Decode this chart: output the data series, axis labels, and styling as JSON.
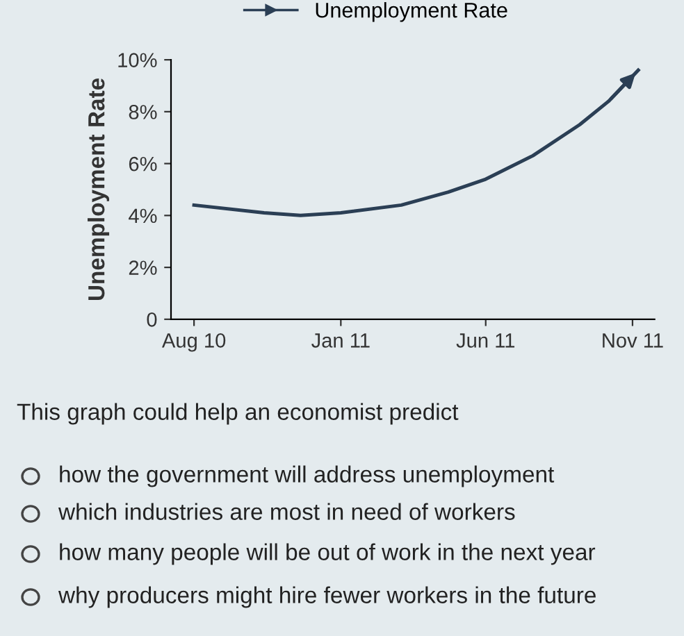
{
  "chart_data": {
    "type": "line",
    "ylabel": "Unemployment Rate",
    "x": [
      "2010-08-01",
      "2010-10-13",
      "2010-11-20",
      "2011-01-01",
      "2011-03-05",
      "2011-04-23",
      "2011-06-01",
      "2011-07-20",
      "2011-09-07",
      "2011-10-07",
      "2011-11-07"
    ],
    "series": [
      {
        "name": "Unemployment Rate",
        "color": "#2b3f55",
        "values": [
          4.4,
          4.1,
          4.0,
          4.1,
          4.4,
          4.9,
          5.4,
          6.3,
          7.5,
          8.4,
          9.6
        ]
      }
    ],
    "xlim": [
      "2010-07-08",
      "2011-11-24"
    ],
    "xticks": [
      {
        "value": "2010-08-01",
        "label": "Aug 10"
      },
      {
        "value": "2011-01-01",
        "label": "Jan 11"
      },
      {
        "value": "2011-06-01",
        "label": "Jun 11"
      },
      {
        "value": "2011-11-01",
        "label": "Nov 11"
      }
    ],
    "ylim": [
      0,
      10
    ],
    "yticks": [
      0,
      {
        "value": 2,
        "label": "2%"
      },
      {
        "value": 4,
        "label": "4%"
      },
      {
        "value": 6,
        "label": "6%"
      },
      {
        "value": 8,
        "label": "8%"
      },
      {
        "value": 10,
        "label": "10%"
      }
    ],
    "grid": false,
    "legend": "top",
    "marker": "none",
    "line_style": "solid",
    "annotations": [
      "This graph could help an economist predict",
      "how the government will address unemployment",
      "which industries are most in need of workers",
      "how many people will be out of work in the next year",
      "why producers might hire fewer workers in the future"
    ]
  }
}
